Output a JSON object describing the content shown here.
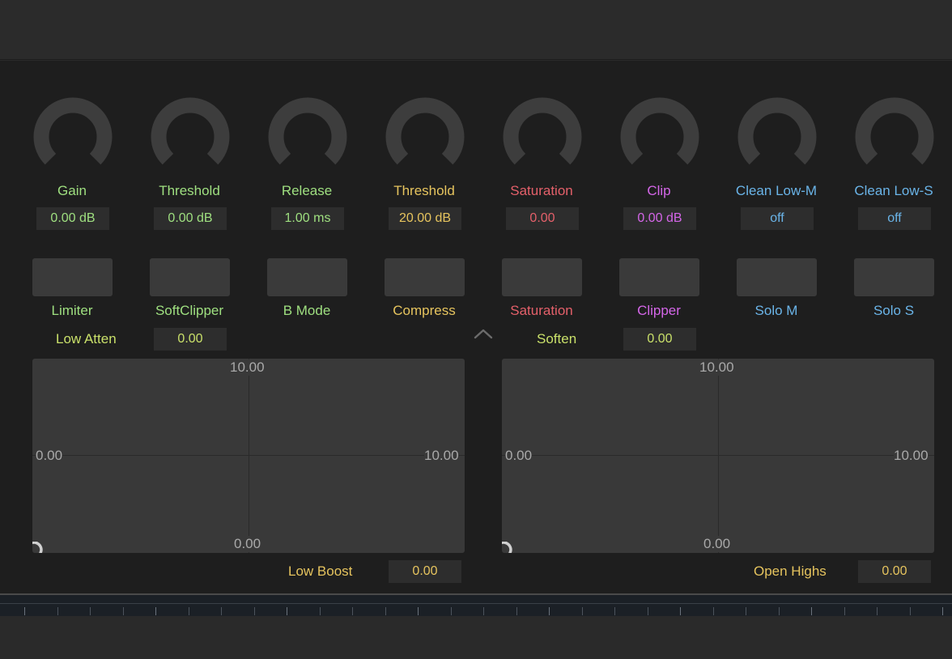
{
  "colors": {
    "green": "#9fe080",
    "lime": "#c9e06a",
    "yellow": "#e6c45e",
    "red": "#e4606a",
    "magenta": "#d466e8",
    "cyan": "#6ab4e8"
  },
  "knobs": [
    {
      "label": "Gain",
      "value": "0.00 dB",
      "color": "#9fe080"
    },
    {
      "label": "Threshold",
      "value": "0.00 dB",
      "color": "#9fe080"
    },
    {
      "label": "Release",
      "value": "1.00 ms",
      "color": "#9fe080"
    },
    {
      "label": "Threshold",
      "value": "20.00 dB",
      "color": "#e6c45e"
    },
    {
      "label": "Saturation",
      "value": "0.00",
      "color": "#e4606a"
    },
    {
      "label": "Clip",
      "value": "0.00 dB",
      "color": "#d466e8"
    },
    {
      "label": "Clean Low-M",
      "value": "off",
      "color": "#6ab4e8"
    },
    {
      "label": "Clean Low-S",
      "value": "off",
      "color": "#6ab4e8"
    }
  ],
  "toggles": [
    {
      "label": "Limiter",
      "color": "#9fe080"
    },
    {
      "label": "SoftClipper",
      "color": "#9fe080"
    },
    {
      "label": "B Mode",
      "color": "#9fe080"
    },
    {
      "label": "Compress",
      "color": "#e6c45e"
    },
    {
      "label": "Saturation",
      "color": "#e4606a"
    },
    {
      "label": "Clipper",
      "color": "#d466e8"
    },
    {
      "label": "Solo M",
      "color": "#6ab4e8"
    },
    {
      "label": "Solo S",
      "color": "#6ab4e8"
    }
  ],
  "inline_params": {
    "low_atten": {
      "label": "Low Atten",
      "value": "0.00"
    },
    "soften": {
      "label": "Soften",
      "value": "0.00"
    },
    "low_boost": {
      "label": "Low Boost",
      "value": "0.00"
    },
    "open_highs": {
      "label": "Open Highs",
      "value": "0.00"
    }
  },
  "xy_pads": [
    {
      "top": "10.00",
      "bottom": "0.00",
      "left": "0.00",
      "right": "10.00"
    },
    {
      "top": "10.00",
      "bottom": "0.00",
      "left": "0.00",
      "right": "10.00"
    }
  ],
  "icons": {
    "collapse": "chevron-up-icon",
    "knob": "knob-icon",
    "pad_handle": "xy-handle-icon"
  }
}
